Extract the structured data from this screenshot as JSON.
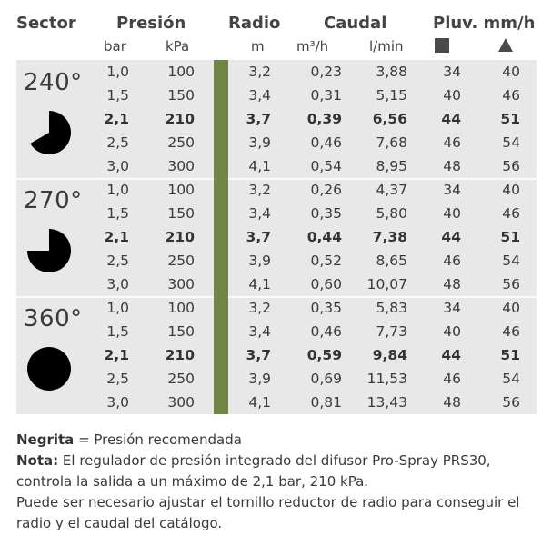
{
  "headers": {
    "sector": "Sector",
    "presion": "Presión",
    "radio": "Radio",
    "caudal": "Caudal",
    "pluv": "Pluv. mm/h",
    "bar": "bar",
    "kpa": "kPa",
    "m": "m",
    "m3h": "m³/h",
    "lmin": "l/min",
    "square_icon": "square-icon",
    "triangle_icon": "triangle-icon"
  },
  "sectors": [
    {
      "label": "240°",
      "icon": "pie-240-icon",
      "rows": [
        [
          "1,0",
          "100",
          "3,2",
          "0,23",
          "3,88",
          "34",
          "40"
        ],
        [
          "1,5",
          "150",
          "3,4",
          "0,31",
          "5,15",
          "40",
          "46"
        ],
        [
          "2,1",
          "210",
          "3,7",
          "0,39",
          "6,56",
          "44",
          "51"
        ],
        [
          "2,5",
          "250",
          "3,9",
          "0,46",
          "7,68",
          "46",
          "54"
        ],
        [
          "3,0",
          "300",
          "4,1",
          "0,54",
          "8,95",
          "48",
          "56"
        ]
      ]
    },
    {
      "label": "270°",
      "icon": "pie-270-icon",
      "rows": [
        [
          "1,0",
          "100",
          "3,2",
          "0,26",
          "4,37",
          "34",
          "40"
        ],
        [
          "1,5",
          "150",
          "3,4",
          "0,35",
          "5,80",
          "40",
          "46"
        ],
        [
          "2,1",
          "210",
          "3,7",
          "0,44",
          "7,38",
          "44",
          "51"
        ],
        [
          "2,5",
          "250",
          "3,9",
          "0,52",
          "8,65",
          "46",
          "54"
        ],
        [
          "3,0",
          "300",
          "4,1",
          "0,60",
          "10,07",
          "48",
          "56"
        ]
      ]
    },
    {
      "label": "360°",
      "icon": "circle-360-icon",
      "rows": [
        [
          "1,0",
          "100",
          "3,2",
          "0,35",
          "5,83",
          "34",
          "40"
        ],
        [
          "1,5",
          "150",
          "3,4",
          "0,46",
          "7,73",
          "40",
          "46"
        ],
        [
          "2,1",
          "210",
          "3,7",
          "0,59",
          "9,84",
          "44",
          "51"
        ],
        [
          "2,5",
          "250",
          "3,9",
          "0,69",
          "11,53",
          "46",
          "54"
        ],
        [
          "3,0",
          "300",
          "4,1",
          "0,81",
          "13,43",
          "48",
          "56"
        ]
      ]
    }
  ],
  "bold_row": 2,
  "colors": {
    "band": "#6f8647",
    "block_bg": "#e8e8e8"
  },
  "notes": {
    "negrita_label": "Negrita",
    "negrita_text": " = Presión recomendada",
    "nota_label": "Nota:",
    "nota_text": " El regulador de presión integrado del difusor Pro-Spray PRS30, controla la salida a un máximo de 2,1 bar, 210 kPa.",
    "extra_text": "Puede ser necesario ajustar el tornillo reductor de radio para conseguir el radio y el caudal del catálogo."
  }
}
